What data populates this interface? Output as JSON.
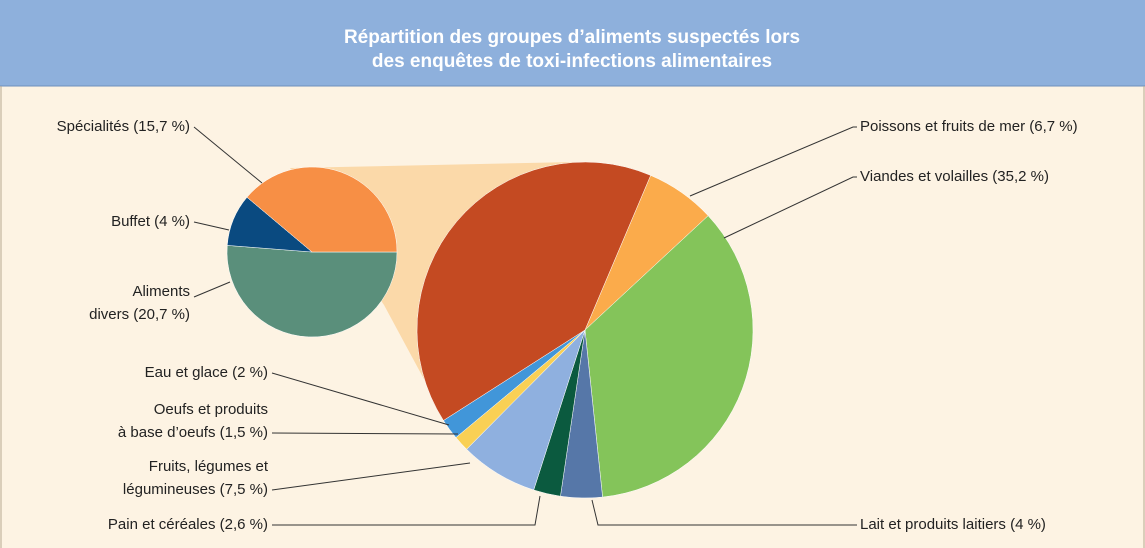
{
  "chart_data": {
    "type": "pie-of-pie",
    "title": [
      "Répartition des groupes d’aliments suspectés lors",
      "des enquêtes de toxi-infections alimentaires"
    ],
    "main": {
      "labels": [
        [
          "Poissons et fruits de mer (6,7 %)"
        ],
        [
          "Viandes et volailles (35,2 %)"
        ],
        [
          "Lait et produits laitiers (4 %)"
        ],
        [
          "Pain et céréales (2,6 %)"
        ],
        [
          "Fruits, légumes et",
          "légumineuses (7,5 %)"
        ],
        [
          "Oeufs et produits",
          "à base d’oeufs (1,5 %)"
        ],
        [
          "Eau et glace (2 %)"
        ]
      ],
      "values": [
        6.7,
        35.2,
        4,
        2.6,
        7.5,
        1.5,
        2
      ],
      "colors": [
        "#fbab4b",
        "#84c45a",
        "#5677a8",
        "#0b5a3f",
        "#8fb0df",
        "#f9d055",
        "#4196d9"
      ],
      "other_color": "#c44a22"
    },
    "secondary": {
      "labels": [
        [
          "Aliments",
          "divers (20,7 %)"
        ],
        [
          "Buffet (4 %)"
        ],
        [
          "Spécialités (15,7 %)"
        ]
      ],
      "values": [
        20.7,
        4,
        15.7
      ],
      "colors": [
        "#5a8f7b",
        "#0a4a80",
        "#f78f45"
      ]
    }
  }
}
